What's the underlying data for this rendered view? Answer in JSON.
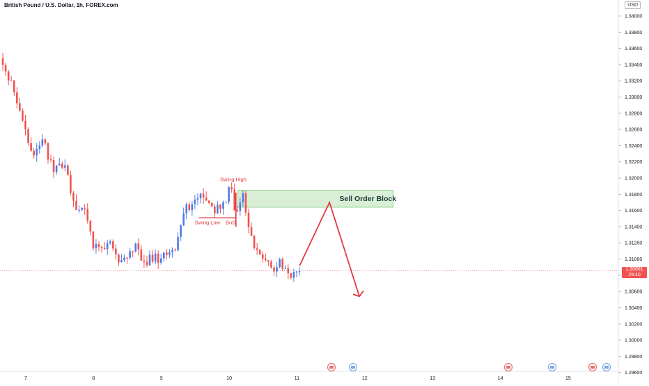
{
  "chart_title": "British Pound / U.S. Dollar, 1h, FOREX.com",
  "currency": "USD",
  "last_price": "1.30861",
  "countdown": "29:40",
  "colors": {
    "up": "#4e7ae8",
    "down": "#ef5350",
    "annotation": "#e03a3e",
    "zone_fill": "#d8efd6",
    "zone_border": "#7cc97a"
  },
  "chart_data": {
    "type": "candlestick",
    "title": "British Pound / U.S. Dollar, 1h, FOREX.com",
    "ylim": [
      1.2958,
      1.3418
    ],
    "xlim": [
      6.62,
      15.72
    ],
    "yticks": [
      "1.34000",
      "1.33800",
      "1.33600",
      "1.33400",
      "1.33200",
      "1.33000",
      "1.32800",
      "1.32600",
      "1.32400",
      "1.32200",
      "1.32000",
      "1.31800",
      "1.31600",
      "1.31400",
      "1.31200",
      "1.31000",
      "1.30800",
      "1.30600",
      "1.30400",
      "1.30200",
      "1.30000",
      "1.29800",
      "1.29600"
    ],
    "xticks": [
      "7",
      "8",
      "9",
      "10",
      "11",
      "12",
      "13",
      "14",
      "15"
    ],
    "price_path": [
      [
        6.62,
        1.3348
      ],
      [
        6.7,
        1.3335
      ],
      [
        6.78,
        1.3318
      ],
      [
        6.88,
        1.3296
      ],
      [
        6.98,
        1.3266
      ],
      [
        7.04,
        1.3241
      ],
      [
        7.1,
        1.3225
      ],
      [
        7.16,
        1.3236
      ],
      [
        7.22,
        1.3245
      ],
      [
        7.28,
        1.324
      ],
      [
        7.34,
        1.3222
      ],
      [
        7.4,
        1.3212
      ],
      [
        7.48,
        1.3218
      ],
      [
        7.55,
        1.322
      ],
      [
        7.62,
        1.32
      ],
      [
        7.68,
        1.3174
      ],
      [
        7.74,
        1.316
      ],
      [
        7.8,
        1.3164
      ],
      [
        7.86,
        1.3158
      ],
      [
        7.92,
        1.314
      ],
      [
        7.98,
        1.312
      ],
      [
        8.04,
        1.3112
      ],
      [
        8.1,
        1.3107
      ],
      [
        8.16,
        1.3112
      ],
      [
        8.22,
        1.3119
      ],
      [
        8.28,
        1.3112
      ],
      [
        8.34,
        1.3104
      ],
      [
        8.4,
        1.3096
      ],
      [
        8.48,
        1.3102
      ],
      [
        8.55,
        1.3111
      ],
      [
        8.62,
        1.3115
      ],
      [
        8.68,
        1.3108
      ],
      [
        8.74,
        1.31
      ],
      [
        8.8,
        1.3098
      ],
      [
        8.86,
        1.3102
      ],
      [
        8.92,
        1.31
      ],
      [
        8.98,
        1.3104
      ],
      [
        9.04,
        1.3107
      ],
      [
        9.1,
        1.3109
      ],
      [
        9.16,
        1.3112
      ],
      [
        9.22,
        1.312
      ],
      [
        9.28,
        1.3142
      ],
      [
        9.34,
        1.3158
      ],
      [
        9.4,
        1.3164
      ],
      [
        9.46,
        1.317
      ],
      [
        9.52,
        1.3177
      ],
      [
        9.58,
        1.318
      ],
      [
        9.64,
        1.3178
      ],
      [
        9.7,
        1.317
      ],
      [
        9.76,
        1.3156
      ],
      [
        9.82,
        1.316
      ],
      [
        9.88,
        1.3166
      ],
      [
        9.94,
        1.3172
      ],
      [
        9.99,
        1.3182
      ],
      [
        10.03,
        1.319
      ],
      [
        10.07,
        1.3168
      ],
      [
        10.11,
        1.316
      ],
      [
        10.16,
        1.3176
      ],
      [
        10.21,
        1.3174
      ],
      [
        10.26,
        1.3158
      ],
      [
        10.31,
        1.3132
      ],
      [
        10.36,
        1.312
      ],
      [
        10.41,
        1.3114
      ],
      [
        10.46,
        1.3106
      ],
      [
        10.52,
        1.3096
      ],
      [
        10.58,
        1.309
      ],
      [
        10.64,
        1.3086
      ],
      [
        10.7,
        1.3094
      ],
      [
        10.76,
        1.3097
      ],
      [
        10.82,
        1.309
      ],
      [
        10.88,
        1.3084
      ],
      [
        10.94,
        1.3079
      ],
      [
        11.0,
        1.3084
      ],
      [
        11.04,
        1.3086
      ]
    ],
    "annotations": [
      {
        "type": "label",
        "text": "Swing High",
        "x": 10.06,
        "y": 1.3196
      },
      {
        "type": "label",
        "text": "Swing Low",
        "x": 9.68,
        "y": 1.3143
      },
      {
        "type": "label",
        "text": "BoS",
        "x": 10.02,
        "y": 1.3143
      },
      {
        "type": "zone",
        "text": "Sell Order Block",
        "x0": 10.13,
        "x1": 12.42,
        "y0": 1.3164,
        "y1": 1.3185
      },
      {
        "type": "path",
        "points": [
          [
            11.04,
            1.3092
          ],
          [
            11.48,
            1.317
          ],
          [
            11.92,
            1.3054
          ]
        ]
      }
    ]
  }
}
